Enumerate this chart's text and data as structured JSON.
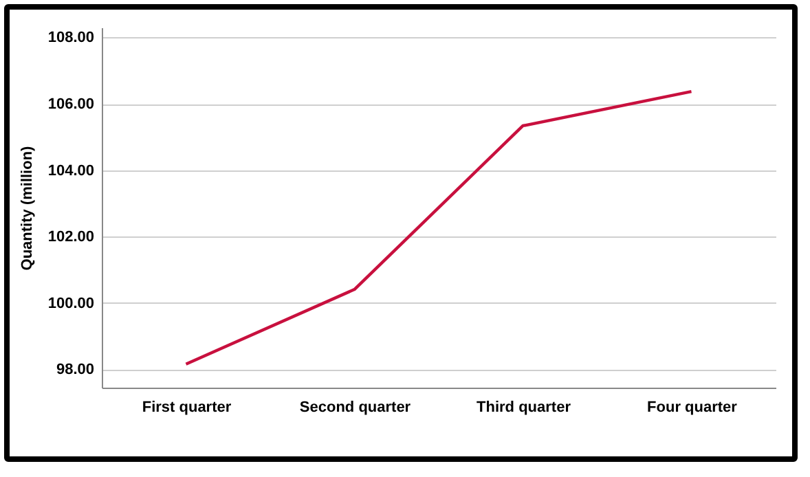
{
  "chart_data": {
    "type": "line",
    "ylabel": "Quantity (million)",
    "categories": [
      "First quarter",
      "Second quarter",
      "Third quarter",
      "Four quarter"
    ],
    "series": [
      {
        "color": "#c8103e",
        "values": [
          98.16,
          100.41,
          105.34,
          106.37
        ]
      }
    ],
    "ylim": [
      97.45,
      108.3
    ],
    "yticks": [
      {
        "value": 98,
        "label": "98.00"
      },
      {
        "value": 100,
        "label": "100.00"
      },
      {
        "value": 102,
        "label": "102.00"
      },
      {
        "value": 104,
        "label": "104.00"
      },
      {
        "value": 106,
        "label": "106.00"
      },
      {
        "value": 108,
        "label": "108.00"
      }
    ],
    "grid": "y",
    "marker": "none",
    "line_style": "solid"
  }
}
